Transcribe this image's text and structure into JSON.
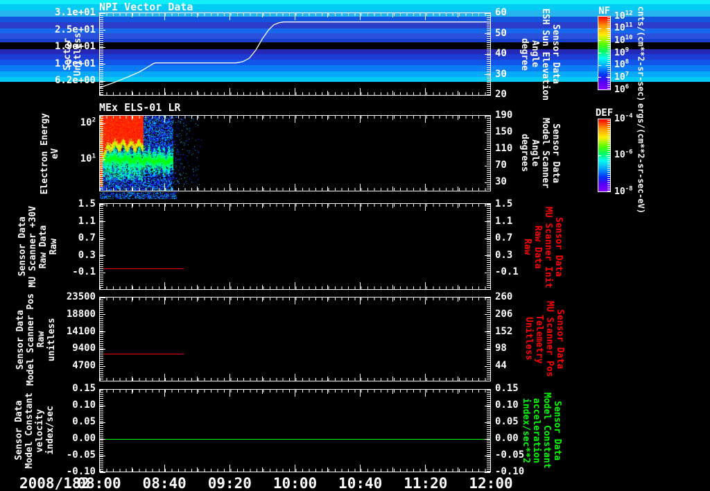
{
  "colors": {
    "background": "#000000",
    "axis": "#ffffff",
    "red_series": "#ff0000",
    "green_series": "#00ff00",
    "white_series": "#ffffff"
  },
  "time_axis": {
    "date_label": "2008/182",
    "tick_labels": [
      "08:00",
      "08:40",
      "09:20",
      "10:00",
      "10:40",
      "11:20",
      "12:00"
    ],
    "tick_minutes": [
      0,
      40,
      80,
      120,
      160,
      200,
      240
    ],
    "total_minutes": 240
  },
  "panels": [
    {
      "title": "NPI Vector Data",
      "left_label": "Sector\nUnitless",
      "left_ticks": {
        "labels": [
          "3.1e+01",
          "2.5e+01",
          "1.9e+01",
          "1.2e+01",
          "6.2e+00"
        ],
        "values": [
          31,
          24.8,
          18.6,
          12.4,
          6.2
        ]
      },
      "right_label": "Sensor Data\nESH Sun Elevation\nAngle\ndegree",
      "right_ticks": {
        "labels": [
          "60",
          "50",
          "40",
          "30",
          "20"
        ],
        "values": [
          60,
          50,
          40,
          30,
          20
        ]
      },
      "label_color": "#ffffff"
    },
    {
      "title": "MEx ELS-01 LR",
      "left_label": "Electron Energy\neV",
      "left_ticks": {
        "labels": [
          "10^2",
          "10^1"
        ],
        "values": [
          100,
          10
        ]
      },
      "right_label": "Sensor Data\nModel Scanner\nAngle\ndegrees",
      "right_ticks": {
        "labels": [
          "190",
          "150",
          "110",
          "70",
          "30"
        ],
        "values": [
          190,
          150,
          110,
          70,
          30
        ]
      },
      "label_color": "#ffffff"
    },
    {
      "title": "",
      "left_label": "Sensor Data\nMU Scanner +30V\nRaw Data\nRaw",
      "left_ticks": {
        "labels": [
          "1.5",
          "1.1",
          "0.7",
          "0.3",
          "-0.1"
        ],
        "values": [
          1.5,
          1.1,
          0.7,
          0.3,
          -0.1
        ]
      },
      "right_label": "Sensor Data\nMU Scanner Init\nRaw Data\nRaw",
      "right_ticks": {
        "labels": [
          "1.5",
          "1.1",
          "0.7",
          "0.3",
          "-0.1"
        ],
        "values": [
          1.5,
          1.1,
          0.7,
          0.3,
          -0.1
        ]
      },
      "label_color": "#ff0000"
    },
    {
      "title": "",
      "left_label": "Sensor Data\nModel Scanner Pos\nRaw\nunitless",
      "left_ticks": {
        "labels": [
          "23500",
          "18800",
          "14100",
          "9400",
          "4700"
        ],
        "values": [
          23500,
          18800,
          14100,
          9400,
          4700
        ]
      },
      "right_label": "Sensor Data\nMU Scanner Pos\nTelemetry\nUnitless",
      "right_ticks": {
        "labels": [
          "260",
          "206",
          "152",
          "98",
          "44"
        ],
        "values": [
          260,
          206,
          152,
          98,
          44
        ]
      },
      "label_color": "#ff0000"
    },
    {
      "title": "",
      "left_label": "Sensor Data\nModel Constant\nvelocity\nindex/sec",
      "left_ticks": {
        "labels": [
          "0.15",
          "0.10",
          "0.05",
          "0.00",
          "-0.05",
          "-0.10"
        ],
        "values": [
          0.15,
          0.1,
          0.05,
          0.0,
          -0.05,
          -0.1
        ]
      },
      "right_label": "Sensor Data\nModel Constant\nacceleration\nindex/sec**2",
      "right_ticks": {
        "labels": [
          "0.15",
          "0.10",
          "0.05",
          "0.00",
          "-0.05",
          "-0.10"
        ],
        "values": [
          0.15,
          0.1,
          0.05,
          0.0,
          -0.05,
          -0.1
        ]
      },
      "label_color": "#00ff00"
    }
  ],
  "colorbars": [
    {
      "title": "NF",
      "units": "cnts/(cm**2-sr-sec)",
      "tick_labels": [
        "10^12",
        "10^11",
        "10^10",
        "10^9",
        "10^8",
        "10^7",
        "10^6"
      ]
    },
    {
      "title": "DEF",
      "units": "ergs/(cm**2-sr-sec-eV)",
      "tick_labels": [
        "10^-4",
        "10^-6",
        "10^-8"
      ]
    }
  ],
  "chart_data": [
    {
      "type": "line",
      "panel_title": "NPI Vector Data",
      "x_axis": {
        "date": "2008/182",
        "ticks": [
          "08:00",
          "08:40",
          "09:20",
          "10:00",
          "10:40",
          "11:20",
          "12:00"
        ],
        "range_minutes": [
          0,
          240
        ]
      },
      "y_left": {
        "label": "Sector Unitless",
        "tick_values": [
          31,
          24.8,
          18.6,
          12.4,
          6.2
        ],
        "range": [
          0.6,
          31
        ]
      },
      "y_right": {
        "label": "Sensor Data ESH Sun Elevation Angle degree",
        "tick_values": [
          60,
          50,
          40,
          30,
          20
        ],
        "range": [
          20,
          60
        ]
      },
      "series": [
        {
          "name": "ESH Sun Elevation Angle",
          "unit": "degree",
          "axis": "right",
          "color": "#ffffff",
          "points_min_deg": [
            [
              0,
              23.5
            ],
            [
              6,
              25.2
            ],
            [
              12,
              27.0
            ],
            [
              18,
              29.0
            ],
            [
              24,
              31.0
            ],
            [
              28,
              32.8
            ],
            [
              31,
              34.3
            ],
            [
              33,
              35.3
            ],
            [
              34.5,
              35.7
            ],
            [
              84,
              35.7
            ],
            [
              88,
              36.3
            ],
            [
              92,
              38.0
            ],
            [
              96,
              42.0
            ],
            [
              100,
              47.5
            ],
            [
              104,
              52.0
            ],
            [
              107,
              54.3
            ],
            [
              110,
              55.3
            ],
            [
              113,
              55.7
            ],
            [
              240,
              55.7
            ]
          ]
        }
      ],
      "color_strip": {
        "name": "NPI sector counts strip",
        "time_start_min": 33.5,
        "time_end_min": 42.5,
        "segments_top_to_bottom": [
          {
            "to_frac": 0.055,
            "color": "#10eef8"
          },
          {
            "to_frac": 0.13,
            "color": "#00ccf4"
          },
          {
            "to_frac": 0.2,
            "color": "#26b6ee"
          },
          {
            "to_frac": 0.27,
            "color": "#1256e0"
          },
          {
            "to_frac": 0.345,
            "color": "#2a3cc8"
          },
          {
            "to_frac": 0.41,
            "color": "#1668ec"
          },
          {
            "to_frac": 0.475,
            "color": "#2a50dc"
          },
          {
            "to_frac": 0.515,
            "color": "#1840d0"
          },
          {
            "to_frac": 0.6,
            "color": "#000000"
          },
          {
            "to_frac": 0.665,
            "color": "#2428b4"
          },
          {
            "to_frac": 0.73,
            "color": "#1c3cd4"
          },
          {
            "to_frac": 0.8,
            "color": "#1254ea"
          },
          {
            "to_frac": 0.875,
            "color": "#0a7cf6"
          },
          {
            "to_frac": 0.94,
            "color": "#06aaf8"
          },
          {
            "to_frac": 1.0,
            "color": "#04c8f6"
          }
        ]
      }
    },
    {
      "type": "heatmap",
      "panel_title": "MEx ELS-01 LR",
      "y_axis": {
        "label": "Electron Energy eV",
        "scale": "log",
        "range_eV": [
          1.3,
          170
        ],
        "tick_labels": [
          "10^2",
          "10^1"
        ]
      },
      "y_right": {
        "label": "Sensor Data Model Scanner Angle degrees",
        "tick_values": [
          190,
          150,
          110,
          70,
          30
        ],
        "range": [
          7,
          193
        ]
      },
      "colorbar": "DEF",
      "data_coverage": {
        "dense_until_min": 45,
        "sparse_until_min": 63
      },
      "features": {
        "red_high_flux": {
          "time_min": [
            1.5,
            26.5
          ],
          "energy_eV": [
            28,
            170
          ]
        },
        "green_band": {
          "time_min": [
            0,
            45
          ],
          "energy_eV": [
            7,
            16
          ]
        },
        "full_height_striations_time_min": [
          0,
          2
        ],
        "background": "blue speckle noise"
      }
    },
    {
      "type": "line",
      "y_left": {
        "label": "Sensor Data MU Scanner +30V Raw Data Raw",
        "range": [
          -0.5,
          1.5
        ]
      },
      "series": [
        {
          "name": "MU Scanner +30V Raw",
          "color": "#ff0000",
          "points_min_val": [
            [
              0,
              0.0
            ],
            [
              52,
              0.0
            ]
          ]
        }
      ]
    },
    {
      "type": "line",
      "y_left": {
        "label": "Sensor Data Model Scanner Pos Raw unitless",
        "range": [
          330,
          23500
        ]
      },
      "series": [
        {
          "name": "Model Scanner Pos Raw",
          "color": "#ff0000",
          "points_min_val": [
            [
              0,
              8200
            ],
            [
              52,
              8200
            ]
          ]
        }
      ]
    },
    {
      "type": "line",
      "y_left": {
        "label": "Sensor Data Model Constant velocity index/sec",
        "range": [
          -0.1,
          0.15
        ]
      },
      "series": [
        {
          "name": "Model Constant velocity",
          "color": "#00ff00",
          "points_min_val": [
            [
              0,
              0.0
            ],
            [
              240,
              0.0
            ]
          ]
        }
      ]
    }
  ]
}
